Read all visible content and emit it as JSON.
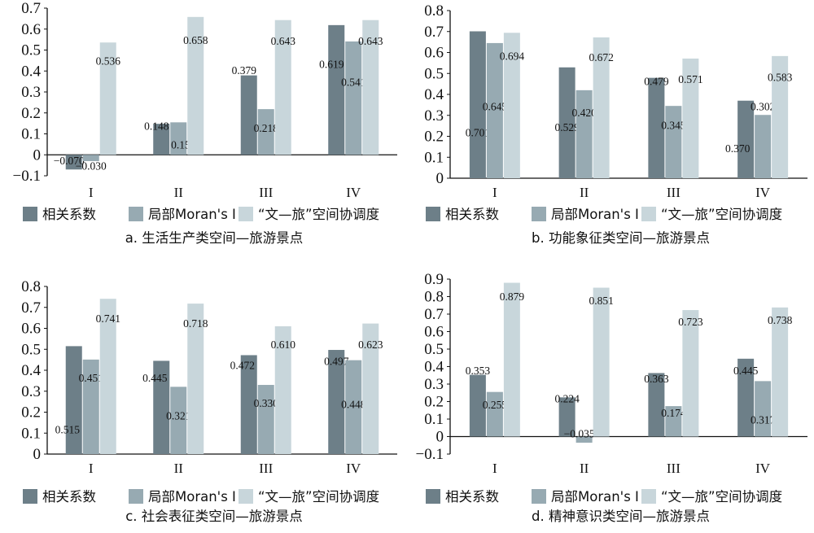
{
  "colors": {
    "series1": "#6d7f88",
    "series2": "#97aab2",
    "series3": "#c8d6db"
  },
  "chart_data": [
    {
      "id": "a",
      "type": "bar",
      "title": "a. 生活生产类空间—旅游景点",
      "categories": [
        "I",
        "II",
        "III",
        "IV"
      ],
      "ylim": [
        -0.1,
        0.7
      ],
      "yticks": [
        "−0.1",
        "0",
        "0.1",
        "0.2",
        "0.3",
        "0.4",
        "0.5",
        "0.6",
        "0.7"
      ],
      "legend": [
        "相关系数",
        "局部Moran's I",
        "“文—旅”空间协调度"
      ],
      "series": [
        {
          "name": "相关系数",
          "values": [
            -0.07,
            0.148,
            0.379,
            0.619
          ],
          "labels": [
            "−0.070",
            "0.148",
            "0.379",
            "0.619"
          ]
        },
        {
          "name": "局部Moran's I",
          "values": [
            -0.03,
            0.155,
            0.218,
            0.541
          ],
          "labels": [
            "−0.030",
            "0.155",
            "0.218",
            "0.541"
          ]
        },
        {
          "name": "“文—旅”空间协调度",
          "values": [
            0.536,
            0.658,
            0.643,
            0.643
          ],
          "labels": [
            "0.536",
            "0.658",
            "0.643",
            "0.643"
          ]
        }
      ]
    },
    {
      "id": "b",
      "type": "bar",
      "title": "b. 功能象征类空间—旅游景点",
      "categories": [
        "I",
        "II",
        "III",
        "IV"
      ],
      "ylim": [
        0,
        0.8
      ],
      "yticks": [
        "0",
        "0.1",
        "0.2",
        "0.3",
        "0.4",
        "0.5",
        "0.6",
        "0.7",
        "0.8"
      ],
      "legend": [
        "相关系数",
        "局部Moran's I",
        "“文—旅”空间协调度"
      ],
      "series": [
        {
          "name": "相关系数",
          "values": [
            0.701,
            0.529,
            0.479,
            0.37
          ],
          "labels": [
            "0.701",
            "0.529",
            "0.479",
            "0.370"
          ]
        },
        {
          "name": "局部Moran's I",
          "values": [
            0.645,
            0.42,
            0.345,
            0.302
          ],
          "labels": [
            "0.645",
            "0.420",
            "0.345",
            "0.302"
          ]
        },
        {
          "name": "“文—旅”空间协调度",
          "values": [
            0.694,
            0.672,
            0.571,
            0.583
          ],
          "labels": [
            "0.694",
            "0.672",
            "0.571",
            "0.583"
          ]
        }
      ]
    },
    {
      "id": "c",
      "type": "bar",
      "title": "c. 社会表征类空间—旅游景点",
      "categories": [
        "I",
        "II",
        "III",
        "IV"
      ],
      "ylim": [
        0,
        0.8
      ],
      "yticks": [
        "0",
        "0.1",
        "0.2",
        "0.3",
        "0.4",
        "0.5",
        "0.6",
        "0.7",
        "0.8"
      ],
      "legend": [
        "相关系数",
        "局部Moran's I",
        "“文—旅”空间协调度"
      ],
      "series": [
        {
          "name": "相关系数",
          "values": [
            0.515,
            0.445,
            0.472,
            0.497
          ],
          "labels": [
            "0.515",
            "0.445",
            "0.472",
            "0.497"
          ]
        },
        {
          "name": "局部Moran's I",
          "values": [
            0.451,
            0.321,
            0.33,
            0.448
          ],
          "labels": [
            "0.451",
            "0.321",
            "0.330",
            "0.448"
          ]
        },
        {
          "name": "“文—旅”空间协调度",
          "values": [
            0.741,
            0.718,
            0.61,
            0.623
          ],
          "labels": [
            "0.741",
            "0.718",
            "0.610",
            "0.623"
          ]
        }
      ]
    },
    {
      "id": "d",
      "type": "bar",
      "title": "d. 精神意识类空间—旅游景点",
      "categories": [
        "I",
        "II",
        "III",
        "IV"
      ],
      "ylim": [
        -0.1,
        0.9
      ],
      "yticks": [
        "−0.1",
        "0",
        "0.1",
        "0.2",
        "0.3",
        "0.4",
        "0.5",
        "0.6",
        "0.7",
        "0.8",
        "0.9"
      ],
      "legend": [
        "相关系数",
        "局部Moran's I",
        "“文—旅”空间协调度"
      ],
      "series": [
        {
          "name": "相关系数",
          "values": [
            0.353,
            0.224,
            0.363,
            0.445
          ],
          "labels": [
            "0.353",
            "0.224",
            "0.363",
            "0.445"
          ]
        },
        {
          "name": "局部Moran's I",
          "values": [
            0.255,
            -0.035,
            0.174,
            0.317
          ],
          "labels": [
            "0.255",
            "−0.035",
            "0.174",
            "0.317"
          ]
        },
        {
          "name": "“文—旅”空间协调度",
          "values": [
            0.879,
            0.851,
            0.723,
            0.738
          ],
          "labels": [
            "0.879",
            "0.851",
            "0.723",
            "0.738"
          ]
        }
      ]
    }
  ]
}
